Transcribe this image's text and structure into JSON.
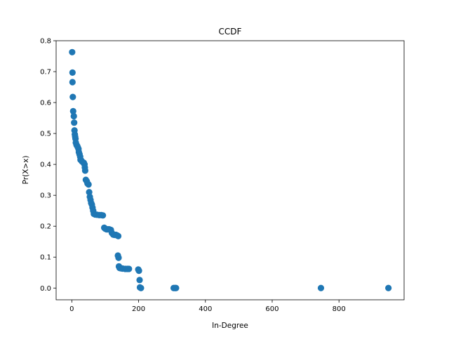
{
  "chart_data": {
    "type": "scatter",
    "title": "CCDF",
    "xlabel": "In-Degree",
    "ylabel": "Pr(X>x)",
    "xlim": [
      -47,
      995
    ],
    "ylim": [
      -0.038,
      0.8
    ],
    "xticks": [
      0,
      200,
      400,
      600,
      800
    ],
    "yticks": [
      0.0,
      0.1,
      0.2,
      0.3,
      0.4,
      0.5,
      0.6,
      0.7,
      0.8
    ],
    "ytick_labels": [
      "0.0",
      "0.1",
      "0.2",
      "0.3",
      "0.4",
      "0.5",
      "0.6",
      "0.7",
      "0.8"
    ],
    "grid": false,
    "marker_color": "#1f77b4",
    "points": [
      [
        1,
        0.763
      ],
      [
        2,
        0.697
      ],
      [
        2,
        0.666
      ],
      [
        3,
        0.618
      ],
      [
        4,
        0.572
      ],
      [
        6,
        0.556
      ],
      [
        7,
        0.535
      ],
      [
        8,
        0.51
      ],
      [
        9,
        0.497
      ],
      [
        10,
        0.49
      ],
      [
        11,
        0.483
      ],
      [
        12,
        0.47
      ],
      [
        14,
        0.463
      ],
      [
        16,
        0.46
      ],
      [
        18,
        0.455
      ],
      [
        20,
        0.45
      ],
      [
        21,
        0.44
      ],
      [
        23,
        0.433
      ],
      [
        25,
        0.425
      ],
      [
        26,
        0.415
      ],
      [
        28,
        0.413
      ],
      [
        30,
        0.41
      ],
      [
        33,
        0.407
      ],
      [
        36,
        0.405
      ],
      [
        38,
        0.4
      ],
      [
        39,
        0.39
      ],
      [
        40,
        0.38
      ],
      [
        42,
        0.35
      ],
      [
        45,
        0.345
      ],
      [
        47,
        0.338
      ],
      [
        50,
        0.335
      ],
      [
        52,
        0.31
      ],
      [
        54,
        0.295
      ],
      [
        56,
        0.285
      ],
      [
        58,
        0.275
      ],
      [
        60,
        0.27
      ],
      [
        62,
        0.26
      ],
      [
        64,
        0.25
      ],
      [
        66,
        0.24
      ],
      [
        70,
        0.238
      ],
      [
        75,
        0.237
      ],
      [
        82,
        0.236
      ],
      [
        88,
        0.236
      ],
      [
        93,
        0.235
      ],
      [
        97,
        0.195
      ],
      [
        100,
        0.192
      ],
      [
        104,
        0.19
      ],
      [
        108,
        0.19
      ],
      [
        112,
        0.19
      ],
      [
        117,
        0.188
      ],
      [
        120,
        0.178
      ],
      [
        124,
        0.173
      ],
      [
        128,
        0.172
      ],
      [
        132,
        0.172
      ],
      [
        136,
        0.17
      ],
      [
        139,
        0.168
      ],
      [
        138,
        0.105
      ],
      [
        140,
        0.098
      ],
      [
        141,
        0.07
      ],
      [
        143,
        0.065
      ],
      [
        147,
        0.064
      ],
      [
        152,
        0.063
      ],
      [
        160,
        0.062
      ],
      [
        166,
        0.062
      ],
      [
        171,
        0.062
      ],
      [
        199,
        0.06
      ],
      [
        201,
        0.056
      ],
      [
        203,
        0.026
      ],
      [
        204,
        0.002
      ],
      [
        207,
        0.0
      ],
      [
        305,
        0.0
      ],
      [
        309,
        0.0
      ],
      [
        312,
        0.0
      ],
      [
        746,
        0.0
      ],
      [
        948,
        0.0
      ]
    ]
  }
}
